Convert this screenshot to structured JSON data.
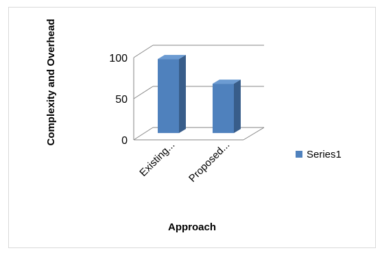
{
  "chart_data": {
    "type": "bar",
    "style": "3d-clustered-column",
    "categories": [
      "Existing...",
      "Proposed..."
    ],
    "series": [
      {
        "name": "Series1",
        "values": [
          90,
          60
        ]
      }
    ],
    "title": "",
    "xlabel": "Approach",
    "ylabel": "Complexity and Overhead",
    "ylim": [
      0,
      100
    ],
    "yticks": [
      0,
      50,
      100
    ],
    "grid": true,
    "legend_position": "right"
  },
  "colors": {
    "bar_front": "#4f81bd",
    "bar_side": "#385d8a",
    "bar_top": "#6c9bd2",
    "gridline": "#868686",
    "text": "#000000"
  }
}
